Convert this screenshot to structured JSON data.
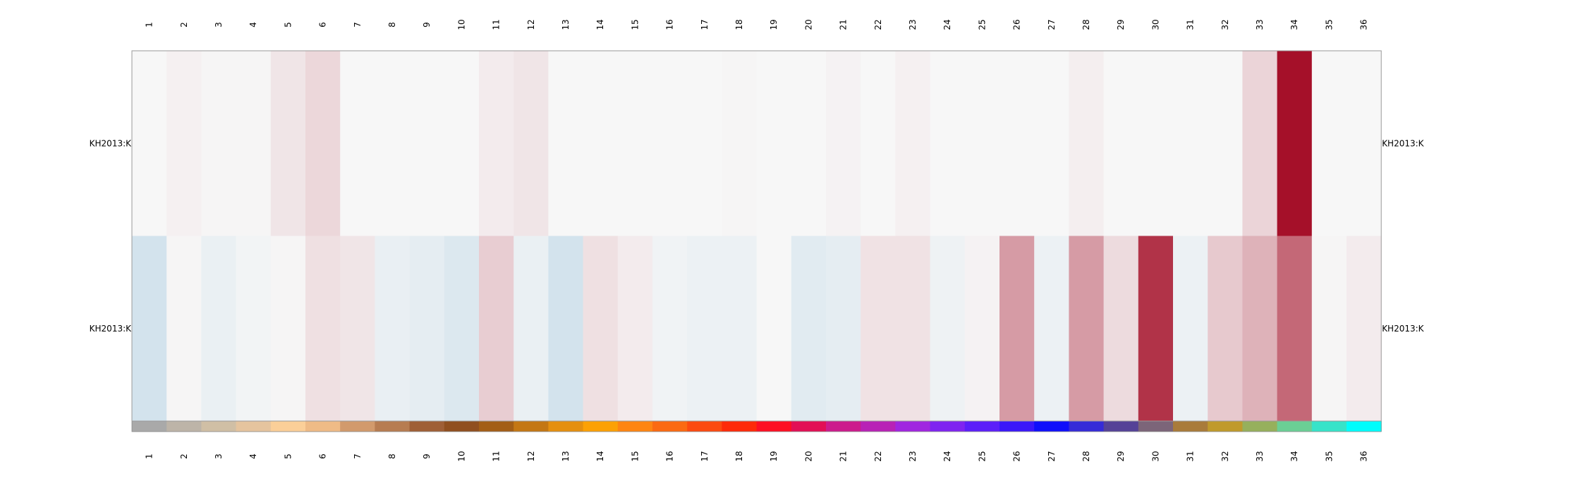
{
  "chart_data": {
    "type": "heatmap",
    "title": "",
    "xlabel": "",
    "ylabel": "",
    "columns": [
      "1",
      "2",
      "3",
      "4",
      "5",
      "6",
      "7",
      "8",
      "9",
      "10",
      "11",
      "12",
      "13",
      "14",
      "15",
      "16",
      "17",
      "18",
      "19",
      "20",
      "21",
      "22",
      "23",
      "24",
      "25",
      "26",
      "27",
      "28",
      "29",
      "30",
      "31",
      "32",
      "33",
      "34",
      "35",
      "36"
    ],
    "rows": [
      "KH2013:K",
      "KH2013:K"
    ],
    "values": [
      [
        0.0,
        0.03,
        0.01,
        0.01,
        0.08,
        0.14,
        0.0,
        0.0,
        0.0,
        0.0,
        0.05,
        0.08,
        0.0,
        0.0,
        0.0,
        0.0,
        0.0,
        0.01,
        0.0,
        0.0,
        0.02,
        0.0,
        0.03,
        0.0,
        0.0,
        0.0,
        0.0,
        0.04,
        0.0,
        0.0,
        0.0,
        0.0,
        0.15,
        1.0,
        0.0,
        0.0
      ],
      [
        -0.2,
        0.01,
        -0.07,
        -0.03,
        0.01,
        0.1,
        0.08,
        -0.08,
        -0.1,
        -0.15,
        0.18,
        -0.07,
        -0.2,
        0.1,
        0.05,
        -0.04,
        -0.06,
        -0.06,
        0.0,
        -0.12,
        -0.1,
        0.09,
        0.09,
        -0.05,
        0.02,
        0.4,
        -0.06,
        0.4,
        0.12,
        0.85,
        -0.06,
        0.2,
        0.3,
        0.62,
        0.01,
        0.05
      ]
    ],
    "column_colors": [
      "#a9a9a9",
      "#bdb4a8",
      "#d0bfa5",
      "#e5c49e",
      "#fbcf98",
      "#efbb86",
      "#d29a6c",
      "#b77c51",
      "#9f5f36",
      "#904f1f",
      "#a35e16",
      "#c47714",
      "#e58f0f",
      "#fca105",
      "#fe8512",
      "#fb6a12",
      "#fc4a10",
      "#fe2a09",
      "#fd0f23",
      "#e20f55",
      "#cc1b8c",
      "#b822b6",
      "#a026e0",
      "#7f24f0",
      "#5c1ff9",
      "#3a17f9",
      "#0f0ffb",
      "#352bd8",
      "#554297",
      "#7c6579",
      "#a97b3a",
      "#c09a2b",
      "#96b05c",
      "#6bcf95",
      "#37e3c9",
      "#00fdfc"
    ],
    "row_labels_both_sides": true,
    "column_labels_both_sides": true,
    "color_scale": {
      "low": "#4393c3",
      "mid": "#f7f7f7",
      "high": "#a51029"
    },
    "grid": false,
    "legend": "none"
  }
}
